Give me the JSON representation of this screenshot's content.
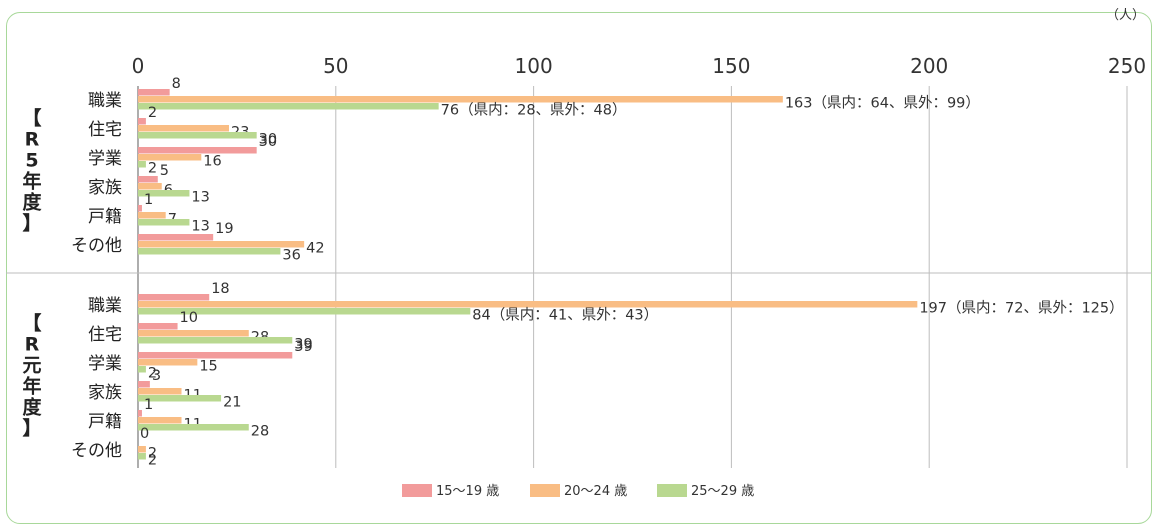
{
  "unit_label": "（人）",
  "chart_data": {
    "type": "bar",
    "orientation": "horizontal",
    "xlim": [
      0,
      250
    ],
    "xticks": [
      0,
      50,
      100,
      150,
      200,
      250
    ],
    "grid": true,
    "legend_position": "bottom",
    "colors": [
      "#f29b9b",
      "#f9bd84",
      "#b9d890"
    ],
    "series_names": [
      "15～19 歳",
      "20～24 歳",
      "25～29 歳"
    ],
    "groups": [
      {
        "label": "【R5年度】",
        "categories": [
          {
            "name": "職業",
            "values": [
              8,
              163,
              76
            ],
            "labels": [
              "8",
              "163（県内：64、県外：99）",
              "76（県内：28、県外：48）"
            ]
          },
          {
            "name": "住宅",
            "values": [
              2,
              23,
              30
            ],
            "labels": [
              "2",
              "23",
              "30"
            ]
          },
          {
            "name": "学業",
            "values": [
              30,
              16,
              2
            ],
            "labels": [
              "30",
              "16",
              "2"
            ]
          },
          {
            "name": "家族",
            "values": [
              5,
              6,
              13
            ],
            "labels": [
              "5",
              "6",
              "13"
            ]
          },
          {
            "name": "戸籍",
            "values": [
              1,
              7,
              13
            ],
            "labels": [
              "1",
              "7",
              "13"
            ]
          },
          {
            "name": "その他",
            "values": [
              19,
              42,
              36
            ],
            "labels": [
              "19",
              "42",
              "36"
            ]
          }
        ]
      },
      {
        "label": "【R元年度】",
        "categories": [
          {
            "name": "職業",
            "values": [
              18,
              197,
              84
            ],
            "labels": [
              "18",
              "197（県内：72、県外：125）",
              "84（県内：41、県外：43）"
            ]
          },
          {
            "name": "住宅",
            "values": [
              10,
              28,
              39
            ],
            "labels": [
              "10",
              "28",
              "39"
            ]
          },
          {
            "name": "学業",
            "values": [
              39,
              15,
              2
            ],
            "labels": [
              "39",
              "15",
              "2"
            ]
          },
          {
            "name": "家族",
            "values": [
              3,
              11,
              21
            ],
            "labels": [
              "3",
              "11",
              "21"
            ]
          },
          {
            "name": "戸籍",
            "values": [
              1,
              11,
              28
            ],
            "labels": [
              "1",
              "11",
              "28"
            ]
          },
          {
            "name": "その他",
            "values": [
              0,
              2,
              2
            ],
            "labels": [
              "0",
              "2",
              "2"
            ]
          }
        ]
      }
    ]
  }
}
